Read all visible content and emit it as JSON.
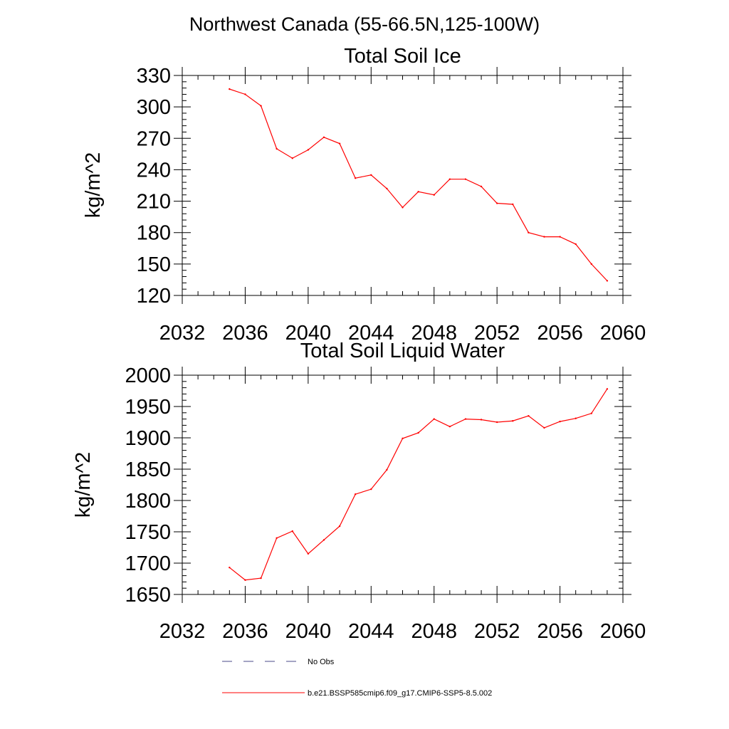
{
  "figure_title": "Northwest Canada (55-66.5N,125-100W)",
  "chart_data": [
    {
      "type": "line",
      "title": "Total Soil Ice",
      "xlabel": "",
      "ylabel": "kg/m^2",
      "xlim": [
        2032,
        2060
      ],
      "ylim": [
        120,
        330
      ],
      "xticks": [
        2032,
        2036,
        2040,
        2044,
        2048,
        2052,
        2056,
        2060
      ],
      "yticks": [
        120,
        150,
        180,
        210,
        240,
        270,
        300,
        330
      ],
      "x_minor_step": 1,
      "y_minor_step": 6,
      "color": "#ff0000",
      "x": [
        2035,
        2036,
        2037,
        2038,
        2039,
        2040,
        2041,
        2042,
        2043,
        2044,
        2045,
        2046,
        2047,
        2048,
        2049,
        2050,
        2051,
        2052,
        2053,
        2054,
        2055,
        2056,
        2057,
        2058,
        2059
      ],
      "y": [
        317,
        312,
        301,
        260,
        251,
        259,
        271,
        265,
        232,
        235,
        222,
        204,
        219,
        216,
        231,
        231,
        224,
        208,
        207,
        180,
        176,
        176,
        169,
        150,
        134
      ]
    },
    {
      "type": "line",
      "title": "Total Soil Liquid Water",
      "xlabel": "",
      "ylabel": "kg/m^2",
      "xlim": [
        2032,
        2060
      ],
      "ylim": [
        1650,
        2000
      ],
      "xticks": [
        2032,
        2036,
        2040,
        2044,
        2048,
        2052,
        2056,
        2060
      ],
      "yticks": [
        1650,
        1700,
        1750,
        1800,
        1850,
        1900,
        1950,
        2000
      ],
      "x_minor_step": 1,
      "y_minor_step": 10,
      "color": "#ff0000",
      "x": [
        2035,
        2036,
        2037,
        2038,
        2039,
        2040,
        2041,
        2042,
        2043,
        2044,
        2045,
        2046,
        2047,
        2048,
        2049,
        2050,
        2051,
        2052,
        2053,
        2054,
        2055,
        2056,
        2057,
        2058,
        2059
      ],
      "y": [
        1693,
        1673,
        1676,
        1740,
        1751,
        1715,
        1737,
        1759,
        1810,
        1818,
        1849,
        1899,
        1908,
        1930,
        1918,
        1930,
        1929,
        1925,
        1927,
        1935,
        1916,
        1926,
        1931,
        1939,
        1978
      ]
    }
  ],
  "legend": [
    {
      "label": "No Obs",
      "color": "#4a4a8a",
      "dash": "dashed"
    },
    {
      "label": "b.e21.BSSP585cmip6.f09_g17.CMIP6-SSP5-8.5.002",
      "color": "#ff0000",
      "dash": "solid"
    }
  ]
}
